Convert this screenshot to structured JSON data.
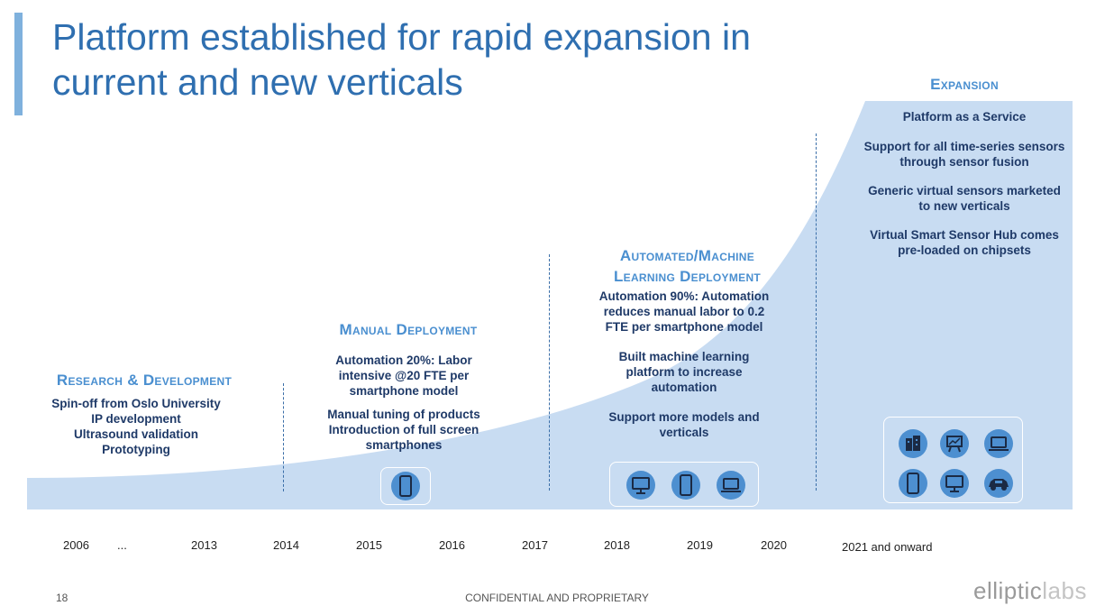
{
  "title": {
    "line1": "Platform established for rapid expansion in",
    "line2": "current and new verticals"
  },
  "colors": {
    "title": "#2f6fb0",
    "accent": "#7fb1dd",
    "curve_fill": "#c8dcf2",
    "heading": "#4a8fd0",
    "body_text": "#1f3a68",
    "icon": "#4d8fd0"
  },
  "stages": [
    {
      "title": [
        "Research & Development"
      ],
      "items": [
        "Spin-off from Oslo University",
        "IP development",
        "Ultrasound validation",
        "Prototyping"
      ]
    },
    {
      "title": [
        "Manual Deployment"
      ],
      "items": [
        "Automation 20%: Labor intensive @20 FTE per smartphone model",
        "Manual tuning of products Introduction of full screen smartphones"
      ],
      "icons": [
        "smartphone-icon"
      ]
    },
    {
      "title": [
        "Automated/Machine",
        "Learning Deployment"
      ],
      "items": [
        "Automation 90%: Automation reduces manual labor to 0.2 FTE per smartphone model",
        "Built machine learning platform to increase automation",
        "Support more models and verticals"
      ],
      "icons": [
        "monitor-icon",
        "smartphone-icon",
        "laptop-icon"
      ]
    },
    {
      "title": [
        "Expansion"
      ],
      "items": [
        "Platform as a Service",
        "Support for all time-series sensors through sensor fusion",
        "Generic virtual sensors marketed to new verticals",
        "Virtual Smart Sensor Hub comes pre-loaded on chipsets"
      ],
      "icons": [
        "building-icon",
        "presentation-icon",
        "laptop-icon",
        "smartphone-icon",
        "monitor-icon",
        "car-icon"
      ]
    }
  ],
  "timeline": [
    "2006",
    "...",
    "2013",
    "2014",
    "2015",
    "2016",
    "2017",
    "2018",
    "2019",
    "2020",
    "2021 and onward"
  ],
  "footer": {
    "page_number": "18",
    "confidential": "CONFIDENTIAL AND PROPRIETARY",
    "logo_left": "elliptic",
    "logo_right": "labs"
  }
}
